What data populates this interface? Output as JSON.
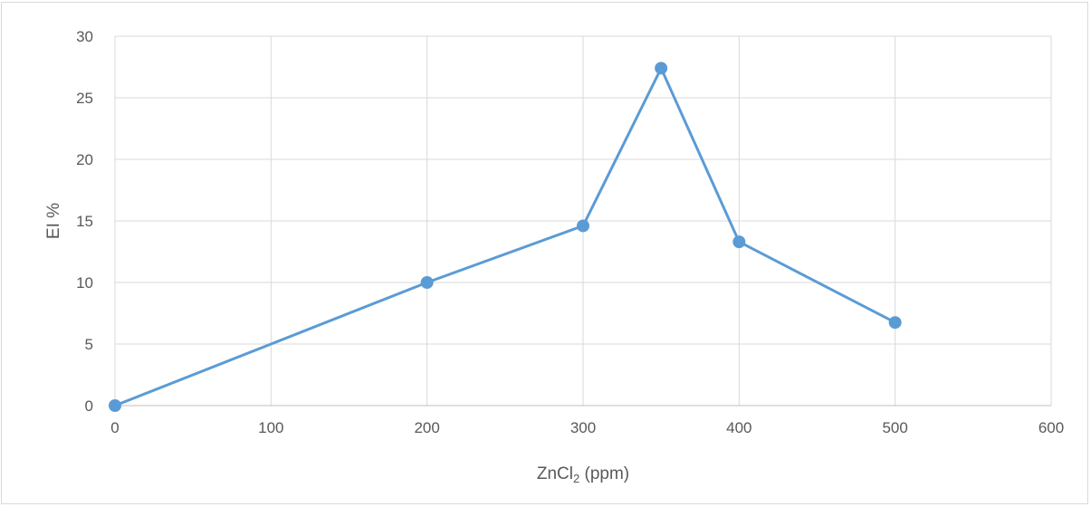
{
  "chart_data": {
    "type": "line",
    "title": "",
    "xlabel": "ZnCl",
    "xlabel_subscript": "2",
    "xlabel_unit": " (ppm)",
    "ylabel": "EI %",
    "xlim": [
      0,
      600
    ],
    "ylim": [
      0,
      30
    ],
    "x_ticks": [
      0,
      100,
      200,
      300,
      400,
      500,
      600
    ],
    "y_ticks": [
      0,
      5,
      10,
      15,
      20,
      25,
      30
    ],
    "grid": true,
    "legend": "none",
    "series": [
      {
        "x": [
          0,
          200,
          300,
          350,
          400,
          500
        ],
        "y": [
          0,
          10,
          14.6,
          27.4,
          13.3,
          6.75
        ],
        "color": "#5b9bd5",
        "marker": "circle"
      }
    ]
  }
}
